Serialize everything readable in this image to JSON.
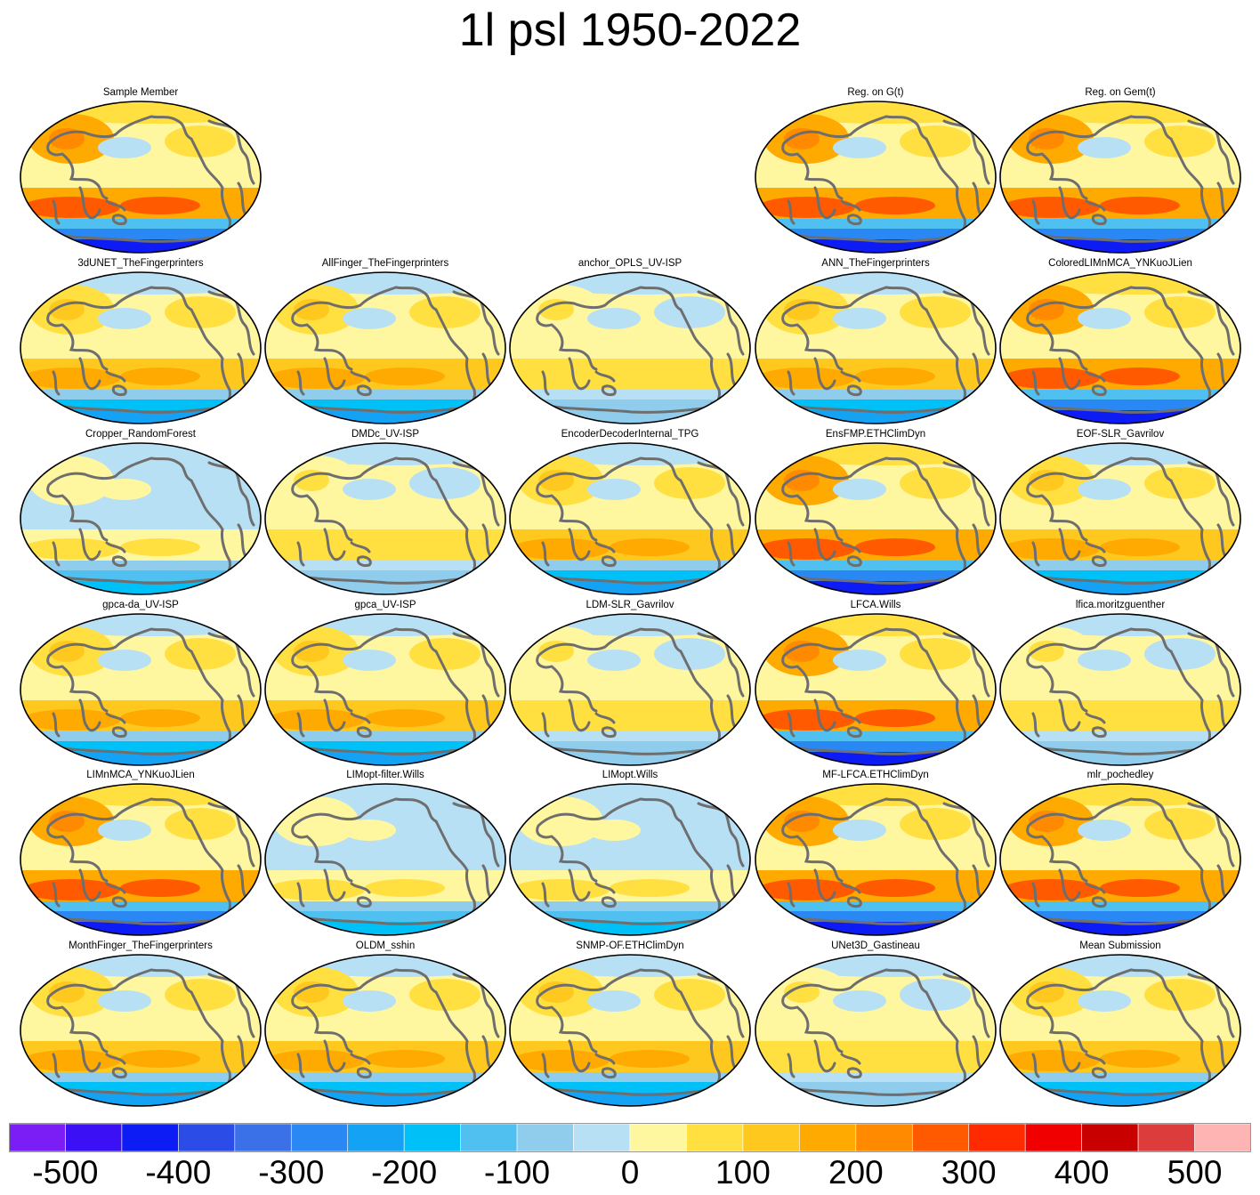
{
  "title": "1l psl 1950-2022",
  "panels": [
    {
      "name": "Sample Member",
      "variant": "strong"
    },
    null,
    null,
    {
      "name": "Reg. on G(t)",
      "variant": "strong"
    },
    {
      "name": "Reg. on Gem(t)",
      "variant": "strong"
    },
    {
      "name": "3dUNET_TheFingerprinters",
      "variant": "medium"
    },
    {
      "name": "AllFinger_TheFingerprinters",
      "variant": "medium"
    },
    {
      "name": "anchor_OPLS_UV-ISP",
      "variant": "weak"
    },
    {
      "name": "ANN_TheFingerprinters",
      "variant": "medium"
    },
    {
      "name": "ColoredLIMnMCA_YNKuoJLien",
      "variant": "strong"
    },
    {
      "name": "Cropper_RandomForest",
      "variant": "blue"
    },
    {
      "name": "DMDc_UV-ISP",
      "variant": "weak"
    },
    {
      "name": "EncoderDecoderInternal_TPG",
      "variant": "medium"
    },
    {
      "name": "EnsFMP.ETHClimDyn",
      "variant": "strong"
    },
    {
      "name": "EOF-SLR_Gavrilov",
      "variant": "medium"
    },
    {
      "name": "gpca-da_UV-ISP",
      "variant": "medium"
    },
    {
      "name": "gpca_UV-ISP",
      "variant": "medium"
    },
    {
      "name": "LDM-SLR_Gavrilov",
      "variant": "weak"
    },
    {
      "name": "LFCA.Wills",
      "variant": "strong"
    },
    {
      "name": "lfica.moritzguenther",
      "variant": "weak"
    },
    {
      "name": "LIMnMCA_YNKuoJLien",
      "variant": "strong"
    },
    {
      "name": "LIMopt-filter.Wills",
      "variant": "blue"
    },
    {
      "name": "LIMopt.Wills",
      "variant": "blue"
    },
    {
      "name": "MF-LFCA.ETHClimDyn",
      "variant": "strong"
    },
    {
      "name": "mlr_pochedley",
      "variant": "strong"
    },
    {
      "name": "MonthFinger_TheFingerprinters",
      "variant": "medium"
    },
    {
      "name": "OLDM_sshin",
      "variant": "medium"
    },
    {
      "name": "SNMP-OF.ETHClimDyn",
      "variant": "medium"
    },
    {
      "name": "UNet3D_Gastineau",
      "variant": "weak"
    },
    {
      "name": "Mean Submission",
      "variant": "medium"
    }
  ],
  "colorbar": {
    "colors": [
      "#7a1ef5",
      "#3b10f5",
      "#0d1cf5",
      "#2c4ce8",
      "#3a70e8",
      "#2a88f5",
      "#14a2f5",
      "#00c0f8",
      "#50c0f0",
      "#90ccec",
      "#b8e0f5",
      "#fff6a0",
      "#ffe040",
      "#ffc81e",
      "#ffaa00",
      "#ff8a00",
      "#ff5a00",
      "#ff2a00",
      "#f00000",
      "#c80000",
      "#dc3c3c",
      "#ffb4b4"
    ],
    "ticks": [
      "-500",
      "-400",
      "-300",
      "-200",
      "-100",
      "0",
      "100",
      "200",
      "300",
      "400",
      "500"
    ]
  }
}
